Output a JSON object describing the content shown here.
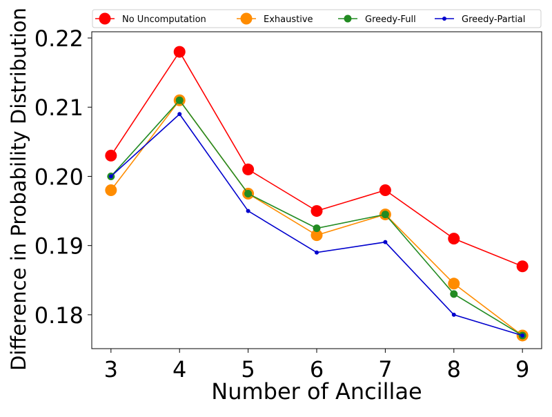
{
  "chart_data": {
    "type": "line",
    "title": "",
    "xlabel": "Number of Ancillae",
    "ylabel": "Difference in Probability Distribution",
    "x": [
      3,
      4,
      5,
      6,
      7,
      8,
      9
    ],
    "xlim": [
      2.72,
      9.28
    ],
    "ylim": [
      0.1751,
      0.2209
    ],
    "y_ticks": [
      0.18,
      0.19,
      0.2,
      0.21,
      0.22
    ],
    "y_tick_labels": [
      "0.18",
      "0.19",
      "0.20",
      "0.21",
      "0.22"
    ],
    "x_tick_labels": [
      "3",
      "4",
      "5",
      "6",
      "7",
      "8",
      "9"
    ],
    "grid": false,
    "legend_position": "top, spanning width, 4 columns",
    "series": [
      {
        "name": "No Uncomputation",
        "color": "#ff0000",
        "marker_size": "large",
        "values": [
          0.203,
          0.218,
          0.201,
          0.195,
          0.198,
          0.191,
          0.187
        ]
      },
      {
        "name": "Exhaustive",
        "color": "#ff8c00",
        "marker_size": "large",
        "values": [
          0.198,
          0.211,
          0.1975,
          0.1915,
          0.1945,
          0.1845,
          0.177
        ]
      },
      {
        "name": "Greedy-Full",
        "color": "#228b22",
        "marker_size": "medium",
        "values": [
          0.2,
          0.211,
          0.1975,
          0.1925,
          0.1945,
          0.183,
          0.177
        ]
      },
      {
        "name": "Greedy-Partial",
        "color": "#0000cd",
        "marker_size": "small",
        "values": [
          0.2,
          0.209,
          0.195,
          0.189,
          0.1905,
          0.18,
          0.177
        ]
      }
    ]
  }
}
